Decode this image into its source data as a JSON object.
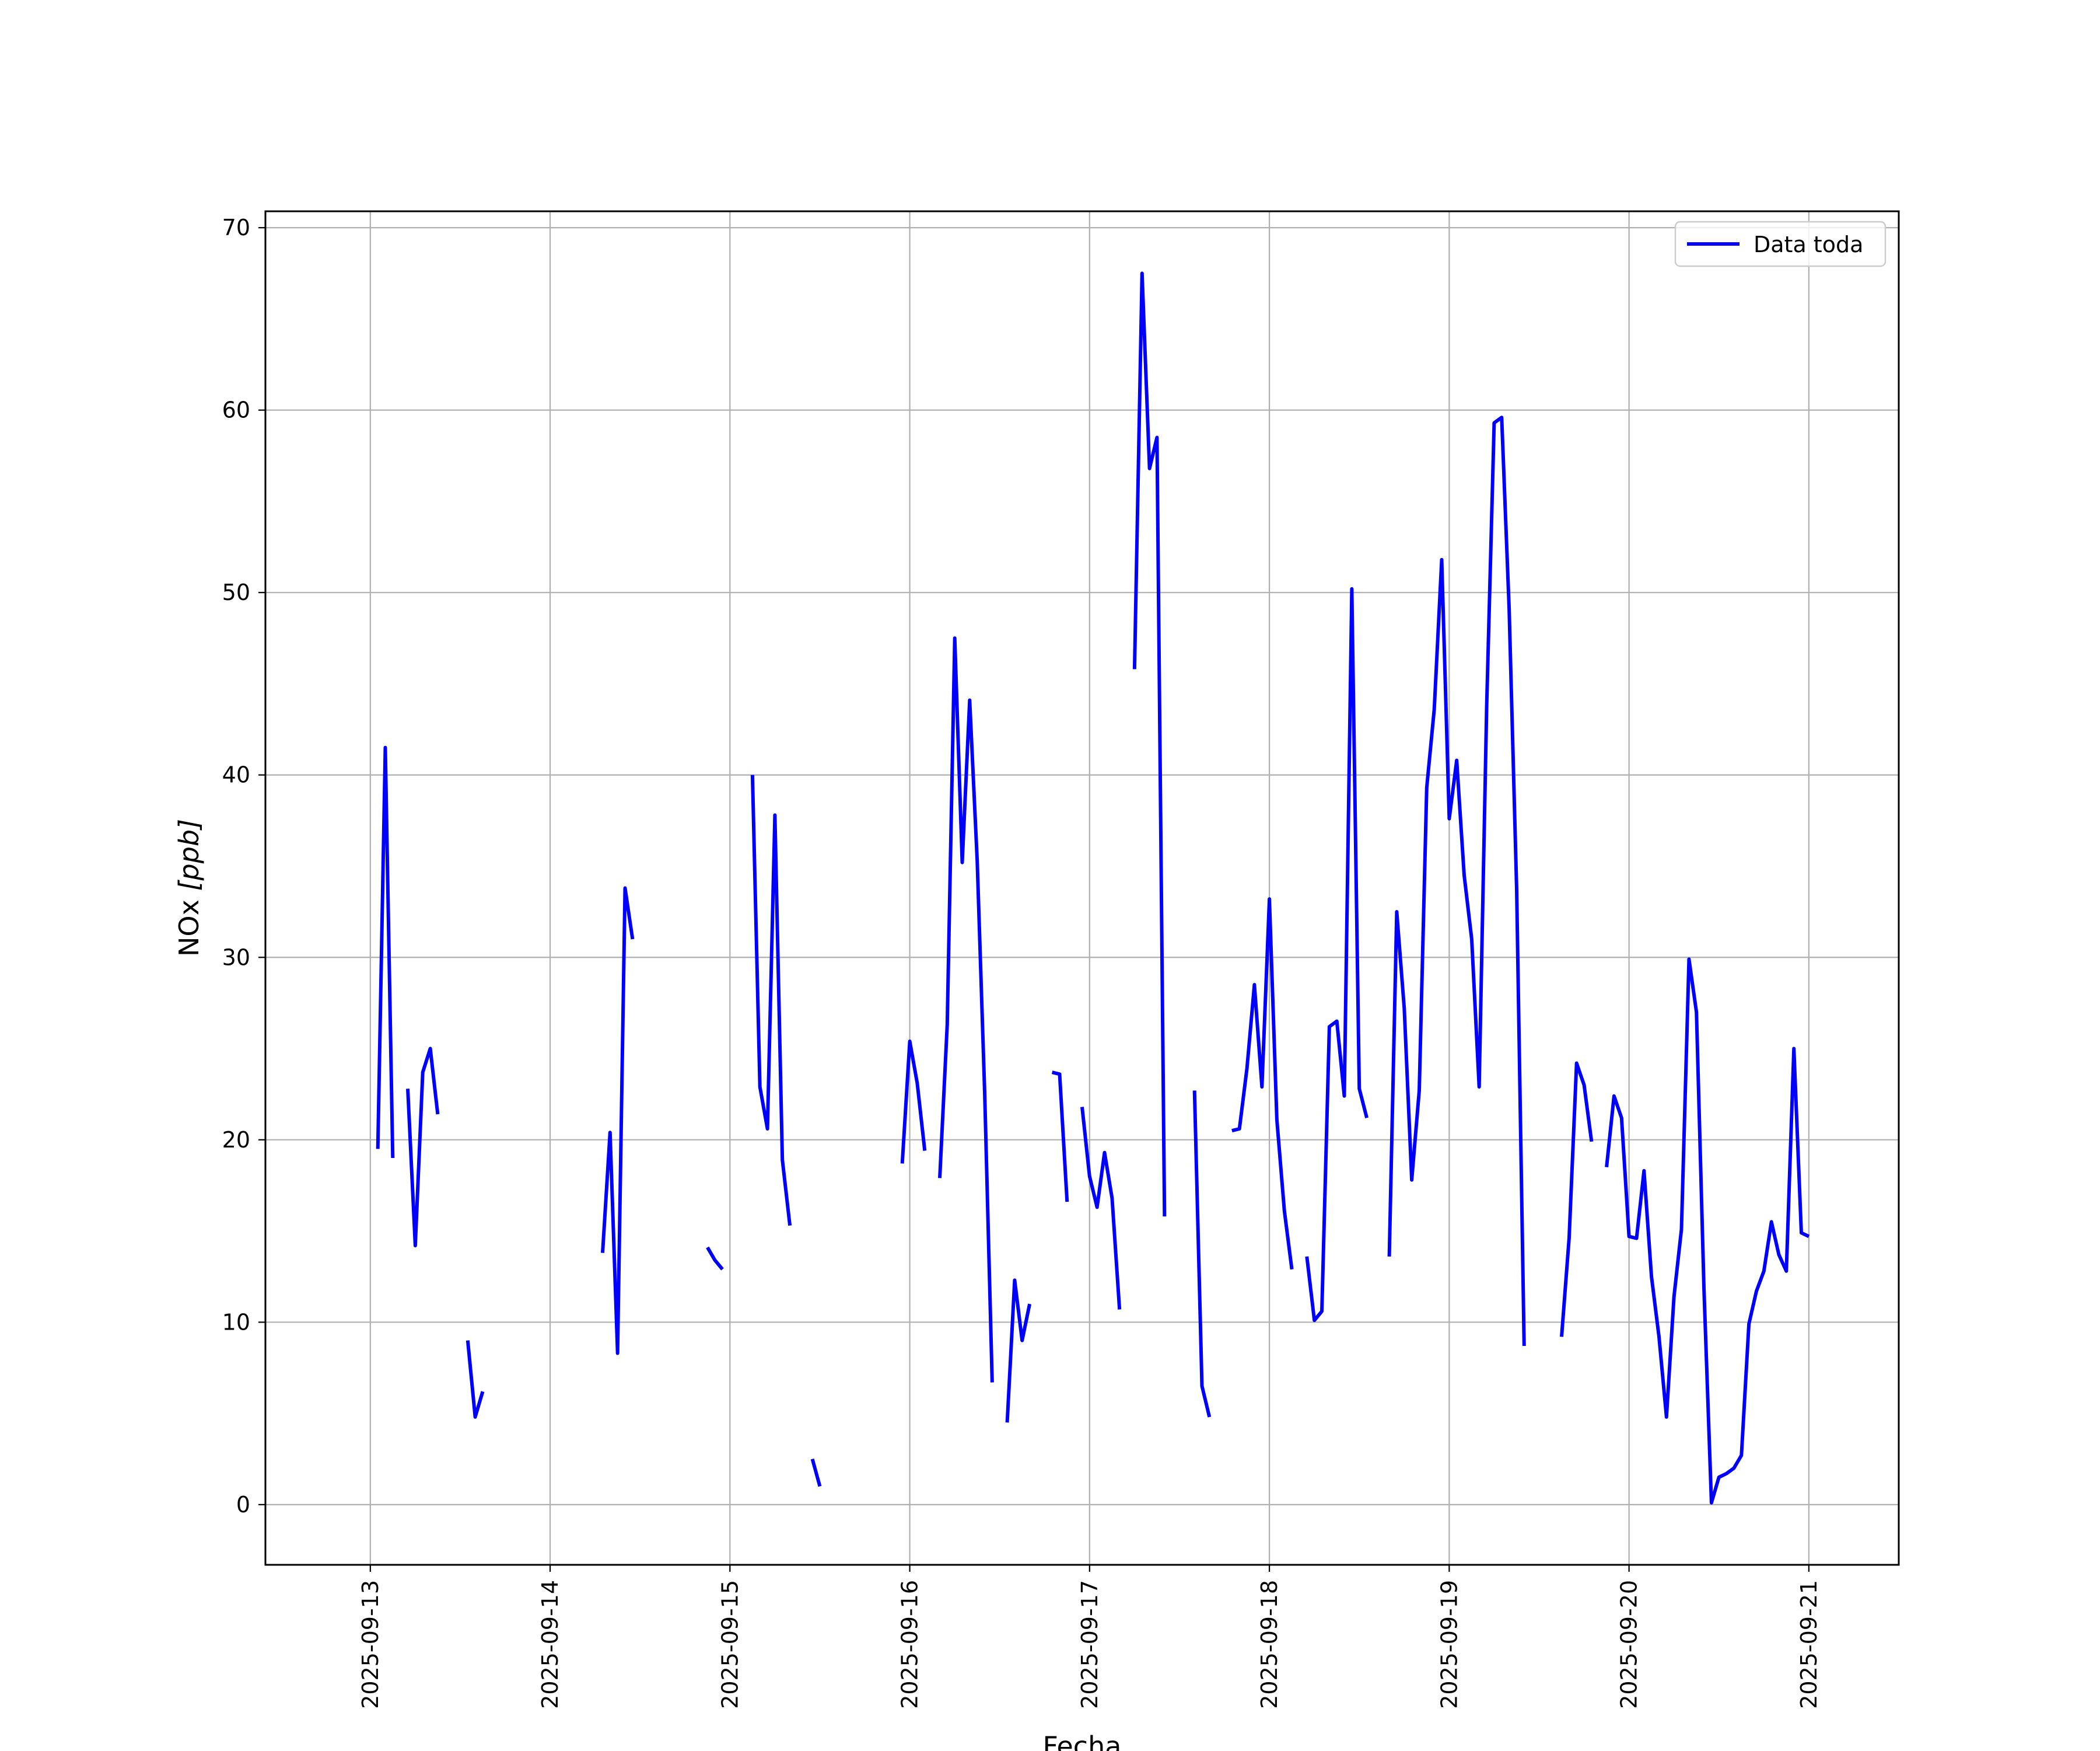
{
  "chart_data": {
    "type": "line",
    "title": "",
    "xlabel": "Fecha",
    "ylabel_text": "NOx",
    "ylabel_unit": "[ppb]",
    "x_is_datetime": true,
    "xlim": [
      "2025-09-12T10:00",
      "2025-09-21T12:00"
    ],
    "ylim": [
      -3.3,
      70.9
    ],
    "grid": true,
    "legend_position": "upper right",
    "xticks": [
      "2025-09-13",
      "2025-09-14",
      "2025-09-15",
      "2025-09-16",
      "2025-09-17",
      "2025-09-18",
      "2025-09-19",
      "2025-09-20",
      "2025-09-21"
    ],
    "yticks": [
      0,
      10,
      20,
      30,
      40,
      50,
      60,
      70
    ],
    "series": [
      {
        "name": "Data toda",
        "color": "#0000ff",
        "segments": [
          [
            [
              "2025-09-13T01:00",
              19.5
            ],
            [
              "2025-09-13T02:00",
              41.5
            ],
            [
              "2025-09-13T03:00",
              19.0
            ]
          ],
          [
            [
              "2025-09-13T05:00",
              22.8
            ],
            [
              "2025-09-13T06:00",
              14.2
            ],
            [
              "2025-09-13T07:00",
              23.7
            ],
            [
              "2025-09-13T08:00",
              25.0
            ],
            [
              "2025-09-13T09:00",
              21.4
            ]
          ],
          [
            [
              "2025-09-13T13:00",
              9.0
            ],
            [
              "2025-09-13T14:00",
              4.8
            ],
            [
              "2025-09-13T15:00",
              6.2
            ]
          ],
          [
            [
              "2025-09-14T07:00",
              13.8
            ],
            [
              "2025-09-14T08:00",
              20.4
            ],
            [
              "2025-09-14T09:00",
              8.3
            ],
            [
              "2025-09-14T10:00",
              33.8
            ],
            [
              "2025-09-14T11:00",
              31.0
            ]
          ],
          [
            [
              "2025-09-14T21:00",
              14.1
            ],
            [
              "2025-09-14T22:00",
              13.4
            ],
            [
              "2025-09-14T23:00",
              12.9
            ]
          ],
          [
            [
              "2025-09-15T03:00",
              40.0
            ],
            [
              "2025-09-15T04:00",
              22.9
            ],
            [
              "2025-09-15T05:00",
              20.6
            ],
            [
              "2025-09-15T06:00",
              37.8
            ],
            [
              "2025-09-15T07:00",
              18.9
            ],
            [
              "2025-09-15T08:00",
              15.3
            ]
          ],
          [
            [
              "2025-09-15T11:00",
              2.5
            ],
            [
              "2025-09-15T12:00",
              1.0
            ]
          ],
          [
            [
              "2025-09-15T23:00",
              18.7
            ],
            [
              "2025-09-16T00:00",
              25.4
            ],
            [
              "2025-09-16T01:00",
              23.1
            ],
            [
              "2025-09-16T02:00",
              19.4
            ]
          ],
          [
            [
              "2025-09-16T04:00",
              17.9
            ],
            [
              "2025-09-16T05:00",
              26.3
            ],
            [
              "2025-09-16T06:00",
              47.5
            ],
            [
              "2025-09-16T07:00",
              35.2
            ],
            [
              "2025-09-16T08:00",
              44.1
            ],
            [
              "2025-09-16T09:00",
              35.3
            ],
            [
              "2025-09-16T10:00",
              22.6
            ],
            [
              "2025-09-16T11:00",
              6.7
            ]
          ],
          [
            [
              "2025-09-16T13:00",
              4.5
            ],
            [
              "2025-09-16T14:00",
              12.3
            ],
            [
              "2025-09-16T15:00",
              9.0
            ],
            [
              "2025-09-16T16:00",
              11.0
            ]
          ],
          [
            [
              "2025-09-16T19:00",
              23.7
            ],
            [
              "2025-09-16T20:00",
              23.6
            ],
            [
              "2025-09-16T21:00",
              16.6
            ]
          ],
          [
            [
              "2025-09-16T23:00",
              21.8
            ],
            [
              "2025-09-17T00:00",
              18.0
            ],
            [
              "2025-09-17T01:00",
              16.3
            ],
            [
              "2025-09-17T02:00",
              19.3
            ],
            [
              "2025-09-17T03:00",
              16.8
            ],
            [
              "2025-09-17T04:00",
              10.7
            ]
          ],
          [
            [
              "2025-09-17T06:00",
              45.8
            ],
            [
              "2025-09-17T07:00",
              67.5
            ],
            [
              "2025-09-17T08:00",
              56.8
            ],
            [
              "2025-09-17T09:00",
              58.5
            ],
            [
              "2025-09-17T10:00",
              15.8
            ]
          ],
          [
            [
              "2025-09-17T14:00",
              22.7
            ],
            [
              "2025-09-17T15:00",
              6.5
            ],
            [
              "2025-09-17T16:00",
              4.8
            ]
          ],
          [
            [
              "2025-09-17T19:00",
              20.5
            ],
            [
              "2025-09-17T20:00",
              20.6
            ],
            [
              "2025-09-17T21:00",
              23.9
            ],
            [
              "2025-09-17T22:00",
              28.5
            ],
            [
              "2025-09-17T23:00",
              22.9
            ],
            [
              "2025-09-18T00:00",
              33.2
            ],
            [
              "2025-09-18T01:00",
              21.1
            ],
            [
              "2025-09-18T02:00",
              16.1
            ],
            [
              "2025-09-18T03:00",
              12.9
            ]
          ],
          [
            [
              "2025-09-18T05:00",
              13.6
            ],
            [
              "2025-09-18T06:00",
              10.1
            ],
            [
              "2025-09-18T07:00",
              10.6
            ],
            [
              "2025-09-18T08:00",
              26.2
            ],
            [
              "2025-09-18T09:00",
              26.5
            ],
            [
              "2025-09-18T10:00",
              22.4
            ],
            [
              "2025-09-18T11:00",
              50.2
            ],
            [
              "2025-09-18T12:00",
              22.8
            ],
            [
              "2025-09-18T13:00",
              21.2
            ]
          ],
          [
            [
              "2025-09-18T16:00",
              13.6
            ],
            [
              "2025-09-18T17:00",
              32.5
            ],
            [
              "2025-09-18T18:00",
              27.2
            ],
            [
              "2025-09-18T19:00",
              17.8
            ],
            [
              "2025-09-18T20:00",
              22.7
            ],
            [
              "2025-09-18T21:00",
              39.3
            ],
            [
              "2025-09-18T22:00",
              43.6
            ],
            [
              "2025-09-18T23:00",
              51.8
            ],
            [
              "2025-09-19T00:00",
              37.6
            ],
            [
              "2025-09-19T01:00",
              40.8
            ],
            [
              "2025-09-19T02:00",
              34.5
            ],
            [
              "2025-09-19T03:00",
              31.0
            ],
            [
              "2025-09-19T04:00",
              22.9
            ],
            [
              "2025-09-19T05:00",
              43.8
            ],
            [
              "2025-09-19T06:00",
              59.3
            ],
            [
              "2025-09-19T07:00",
              59.6
            ],
            [
              "2025-09-19T08:00",
              49.1
            ],
            [
              "2025-09-19T09:00",
              33.7
            ],
            [
              "2025-09-19T10:00",
              8.7
            ]
          ],
          [
            [
              "2025-09-19T15:00",
              9.2
            ],
            [
              "2025-09-19T16:00",
              14.6
            ],
            [
              "2025-09-19T17:00",
              24.2
            ],
            [
              "2025-09-19T18:00",
              23.0
            ],
            [
              "2025-09-19T19:00",
              19.9
            ]
          ],
          [
            [
              "2025-09-19T21:00",
              18.5
            ],
            [
              "2025-09-19T22:00",
              22.4
            ],
            [
              "2025-09-19T23:00",
              21.2
            ],
            [
              "2025-09-20T00:00",
              14.7
            ],
            [
              "2025-09-20T01:00",
              14.6
            ],
            [
              "2025-09-20T02:00",
              18.3
            ],
            [
              "2025-09-20T03:00",
              12.5
            ],
            [
              "2025-09-20T04:00",
              9.2
            ],
            [
              "2025-09-20T05:00",
              4.8
            ],
            [
              "2025-09-20T06:00",
              11.4
            ],
            [
              "2025-09-20T07:00",
              15.1
            ],
            [
              "2025-09-20T08:00",
              29.9
            ],
            [
              "2025-09-20T09:00",
              27.0
            ],
            [
              "2025-09-20T10:00",
              11.8
            ],
            [
              "2025-09-20T11:00",
              0.1
            ],
            [
              "2025-09-20T12:00",
              1.5
            ],
            [
              "2025-09-20T13:00",
              1.7
            ],
            [
              "2025-09-20T14:00",
              2.0
            ],
            [
              "2025-09-20T15:00",
              2.7
            ],
            [
              "2025-09-20T16:00",
              9.9
            ],
            [
              "2025-09-20T17:00",
              11.7
            ],
            [
              "2025-09-20T18:00",
              12.8
            ],
            [
              "2025-09-20T19:00",
              15.5
            ],
            [
              "2025-09-20T20:00",
              13.7
            ],
            [
              "2025-09-20T21:00",
              12.8
            ],
            [
              "2025-09-20T22:00",
              25.0
            ],
            [
              "2025-09-20T23:00",
              14.9
            ],
            [
              "2025-09-21T00:00",
              14.7
            ]
          ]
        ]
      }
    ]
  }
}
